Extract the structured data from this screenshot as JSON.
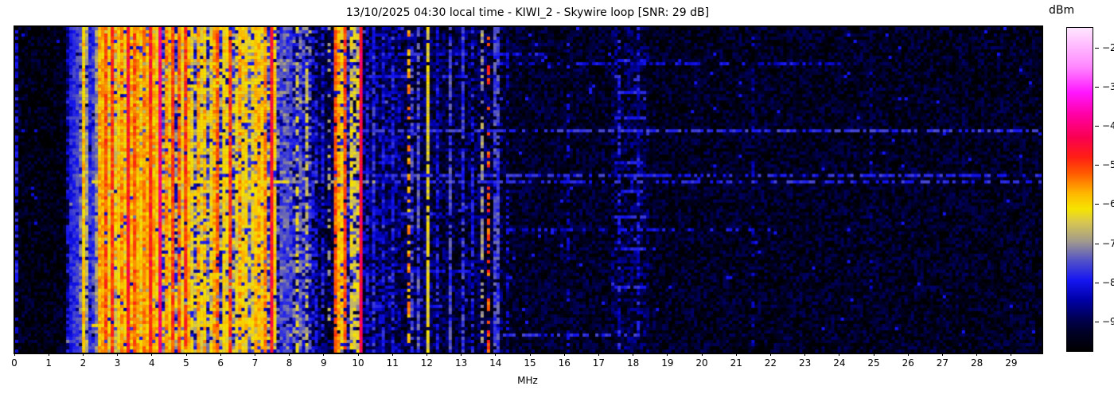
{
  "title": "13/10/2025 04:30 local time - KIWI_2 - Skywire loop [SNR: 29 dB]",
  "xaxis": {
    "label": "MHz",
    "ticks": [
      0,
      1,
      2,
      3,
      4,
      5,
      6,
      7,
      8,
      9,
      10,
      11,
      12,
      13,
      14,
      15,
      16,
      17,
      18,
      19,
      20,
      21,
      22,
      23,
      24,
      25,
      26,
      27,
      28,
      29
    ],
    "range": [
      0,
      29.86
    ]
  },
  "colorbar": {
    "label": "dBm",
    "ticks": [
      {
        "v": -20,
        "label": "−20"
      },
      {
        "v": -30,
        "label": "−30"
      },
      {
        "v": -40,
        "label": "−40"
      },
      {
        "v": -50,
        "label": "−50"
      },
      {
        "v": -60,
        "label": "−60"
      },
      {
        "v": -70,
        "label": "−70"
      },
      {
        "v": -80,
        "label": "−80"
      },
      {
        "v": -90,
        "label": "−90"
      }
    ],
    "value_range": [
      -97.5,
      -15
    ],
    "stops": [
      [
        0.0,
        "#000000"
      ],
      [
        0.06,
        "#000028"
      ],
      [
        0.1,
        "#000052"
      ],
      [
        0.16,
        "#0000aa"
      ],
      [
        0.22,
        "#1616f2"
      ],
      [
        0.28,
        "#5252c8"
      ],
      [
        0.34,
        "#a29a8c"
      ],
      [
        0.4,
        "#d9c84e"
      ],
      [
        0.44,
        "#f6e400"
      ],
      [
        0.49,
        "#ffb400"
      ],
      [
        0.55,
        "#ff5a00"
      ],
      [
        0.6,
        "#ff1e14"
      ],
      [
        0.66,
        "#fa0050"
      ],
      [
        0.73,
        "#ff00a2"
      ],
      [
        0.8,
        "#ff16ff"
      ],
      [
        0.88,
        "#ff88ff"
      ],
      [
        1.0,
        "#ffe6ff"
      ]
    ]
  },
  "chart_data": {
    "type": "heatmap",
    "title": "13/10/2025 04:30 local time - KIWI_2 - Skywire loop [SNR: 29 dB]",
    "xlabel": "MHz",
    "zlabel": "dBm",
    "x_range_mhz": [
      0,
      29.86
    ],
    "z_range_dbm": [
      -97.5,
      -15
    ],
    "grid": {
      "cols": 322,
      "rows": 102,
      "seed": 1337
    },
    "noise_bands": [
      [
        0.0,
        1.5,
        -95,
        3.5
      ],
      [
        1.5,
        2.28,
        -85,
        5
      ],
      [
        2.28,
        2.55,
        -79,
        7
      ],
      [
        2.55,
        4.65,
        -70,
        10
      ],
      [
        4.65,
        6.6,
        -74,
        9
      ],
      [
        6.6,
        7.6,
        -74,
        9
      ],
      [
        7.6,
        8.6,
        -80,
        7
      ],
      [
        8.6,
        9.25,
        -90,
        4.5
      ],
      [
        9.25,
        10.15,
        -82,
        7
      ],
      [
        10.15,
        11.2,
        -88,
        5
      ],
      [
        11.2,
        12.3,
        -90,
        4.5
      ],
      [
        12.3,
        14.2,
        -91,
        4.5
      ],
      [
        14.2,
        17.3,
        -93,
        3.5
      ],
      [
        17.3,
        18.5,
        -91,
        4.5
      ],
      [
        18.5,
        29.9,
        -93.5,
        3.5
      ]
    ],
    "signals": [
      [
        0.03,
        -80,
        0.04,
        0.5
      ],
      [
        1.6,
        -79,
        0.05,
        0.95
      ],
      [
        1.68,
        -78,
        0.05,
        0.95
      ],
      [
        1.76,
        -79,
        0.05,
        0.9
      ],
      [
        1.84,
        -77,
        0.05,
        0.9
      ],
      [
        1.93,
        -72,
        0.05,
        0.8
      ],
      [
        2.03,
        -59,
        0.05,
        1
      ],
      [
        2.1,
        -68,
        0.04,
        0.8
      ],
      [
        2.22,
        -78,
        0.04,
        0.9
      ],
      [
        2.32,
        -76,
        0.05,
        0.9
      ],
      [
        2.41,
        -70,
        0.04,
        0.8
      ],
      [
        2.5,
        -57,
        0.07,
        1
      ],
      [
        2.58,
        -62,
        0.05,
        0.9
      ],
      [
        2.66,
        -52,
        0.05,
        0.95
      ],
      [
        2.74,
        -62,
        0.04,
        0.8
      ],
      [
        2.82,
        -50,
        0.05,
        0.95
      ],
      [
        2.92,
        -65,
        0.04,
        0.8
      ],
      [
        3.0,
        -60,
        0.05,
        0.9
      ],
      [
        3.08,
        -55,
        0.05,
        0.9
      ],
      [
        3.16,
        -62,
        0.04,
        0.85
      ],
      [
        3.28,
        -46,
        0.06,
        1
      ],
      [
        3.38,
        -58,
        0.04,
        0.9
      ],
      [
        3.46,
        -52,
        0.05,
        0.95
      ],
      [
        3.56,
        -57,
        0.05,
        0.9
      ],
      [
        3.66,
        -60,
        0.04,
        0.85
      ],
      [
        3.76,
        -55,
        0.05,
        0.9
      ],
      [
        3.85,
        -58,
        0.04,
        0.9
      ],
      [
        3.94,
        -48,
        0.06,
        1
      ],
      [
        4.04,
        -57,
        0.05,
        0.9
      ],
      [
        4.13,
        -60,
        0.04,
        0.85
      ],
      [
        4.26,
        -41,
        0.09,
        1
      ],
      [
        4.4,
        -55,
        0.05,
        0.9
      ],
      [
        4.5,
        -60,
        0.05,
        0.85
      ],
      [
        4.63,
        -50,
        0.05,
        0.95
      ],
      [
        4.75,
        -52,
        0.04,
        0.9
      ],
      [
        4.85,
        -62,
        0.04,
        0.8
      ],
      [
        4.95,
        -50,
        0.05,
        0.95
      ],
      [
        5.06,
        -58,
        0.05,
        0.9
      ],
      [
        5.17,
        -62,
        0.04,
        0.8
      ],
      [
        5.3,
        -57,
        0.05,
        0.9
      ],
      [
        5.42,
        -63,
        0.04,
        0.8
      ],
      [
        5.55,
        -58,
        0.05,
        0.85
      ],
      [
        5.68,
        -62,
        0.04,
        0.8
      ],
      [
        5.8,
        -57,
        0.05,
        0.9
      ],
      [
        5.92,
        -52,
        0.05,
        0.9
      ],
      [
        6.05,
        -60,
        0.04,
        0.85
      ],
      [
        6.18,
        -62,
        0.04,
        0.8
      ],
      [
        6.3,
        -50,
        0.05,
        0.95
      ],
      [
        6.42,
        -63,
        0.04,
        0.8
      ],
      [
        6.55,
        -57,
        0.05,
        0.85
      ],
      [
        6.68,
        -60,
        0.04,
        0.8
      ],
      [
        6.8,
        -76,
        0.05,
        0.9
      ],
      [
        6.93,
        -62,
        0.04,
        0.8
      ],
      [
        7.05,
        -58,
        0.05,
        0.85
      ],
      [
        7.18,
        -60,
        0.04,
        0.85
      ],
      [
        7.3,
        -55,
        0.05,
        0.9
      ],
      [
        7.45,
        -47,
        0.05,
        1
      ],
      [
        7.57,
        -60,
        0.04,
        0.8
      ],
      [
        7.72,
        -77,
        0.05,
        0.9
      ],
      [
        7.88,
        -75,
        0.05,
        0.85
      ],
      [
        8.02,
        -77,
        0.04,
        0.85
      ],
      [
        8.18,
        -64,
        0.04,
        0.5
      ],
      [
        8.32,
        -74,
        0.04,
        0.7
      ],
      [
        8.47,
        -66,
        0.04,
        0.6
      ],
      [
        8.72,
        -80,
        0.04,
        0.6
      ],
      [
        8.95,
        -79,
        0.04,
        0.6
      ],
      [
        9.12,
        -68,
        0.04,
        0.3
      ],
      [
        9.28,
        -52,
        0.05,
        0.9
      ],
      [
        9.42,
        -57,
        0.05,
        0.9
      ],
      [
        9.5,
        -60,
        0.04,
        0.8
      ],
      [
        9.63,
        -51,
        0.05,
        0.9
      ],
      [
        9.8,
        -63,
        0.04,
        0.7
      ],
      [
        9.92,
        -64,
        0.04,
        0.7
      ],
      [
        10.05,
        -44,
        0.05,
        1
      ],
      [
        10.25,
        -80,
        0.04,
        0.6
      ],
      [
        10.45,
        -78,
        0.04,
        0.7
      ],
      [
        10.7,
        -80,
        0.04,
        0.6
      ],
      [
        11.0,
        -79,
        0.04,
        0.6
      ],
      [
        11.45,
        -56,
        0.04,
        0.45
      ],
      [
        11.58,
        -76,
        0.04,
        0.5
      ],
      [
        11.72,
        -75,
        0.04,
        0.8
      ],
      [
        12.05,
        -63,
        0.04,
        0.9
      ],
      [
        12.3,
        -80,
        0.04,
        0.6
      ],
      [
        12.65,
        -76,
        0.04,
        0.8
      ],
      [
        13.0,
        -77,
        0.04,
        0.8
      ],
      [
        13.3,
        -80,
        0.04,
        0.5
      ],
      [
        13.6,
        -69,
        0.04,
        0.6
      ],
      [
        13.74,
        -51,
        0.04,
        0.35
      ],
      [
        14.0,
        -76,
        0.04,
        0.8
      ],
      [
        14.35,
        -82,
        0.04,
        0.4
      ],
      [
        16.05,
        -82,
        0.04,
        0.3
      ],
      [
        17.55,
        -80,
        0.04,
        0.4
      ],
      [
        18.1,
        -80,
        0.04,
        0.4
      ],
      [
        21.5,
        -85,
        0.04,
        0.25
      ],
      [
        24.9,
        -85,
        0.04,
        0.2
      ]
    ],
    "bursts": [
      [
        0.11,
        2.5,
        8.0,
        -70,
        0.7
      ],
      [
        0.155,
        3.0,
        7.5,
        -72,
        0.6
      ],
      [
        0.475,
        2.2,
        8.0,
        -62,
        0.95
      ],
      [
        0.475,
        8.0,
        10.6,
        -70,
        0.6
      ],
      [
        0.48,
        10.6,
        30,
        -78,
        0.5
      ],
      [
        0.925,
        2.2,
        7.4,
        -62,
        0.95
      ],
      [
        0.08,
        10.2,
        15.5,
        -80,
        0.6
      ],
      [
        0.105,
        14,
        24,
        -81,
        0.5
      ],
      [
        0.145,
        10.3,
        13.2,
        -79,
        0.6
      ],
      [
        0.32,
        9.8,
        30,
        -77,
        0.7
      ],
      [
        0.46,
        9.8,
        30,
        -78,
        0.6
      ],
      [
        0.57,
        10,
        13,
        -80,
        0.5
      ],
      [
        0.62,
        14,
        22,
        -81,
        0.5
      ],
      [
        0.75,
        10.5,
        13.5,
        -80,
        0.5
      ],
      [
        0.86,
        9.5,
        12.5,
        -80,
        0.55
      ],
      [
        0.95,
        14.2,
        18.5,
        -78,
        0.6
      ],
      [
        0.1,
        17.4,
        18.4,
        -78,
        0.8
      ],
      [
        0.2,
        17.4,
        18.4,
        -78,
        0.8
      ],
      [
        0.28,
        17.4,
        18.4,
        -79,
        0.8
      ],
      [
        0.42,
        17.4,
        18.4,
        -78,
        0.8
      ],
      [
        0.5,
        17.4,
        18.4,
        -79,
        0.8
      ],
      [
        0.58,
        17.4,
        18.4,
        -78,
        0.8
      ],
      [
        0.68,
        17.4,
        18.4,
        -79,
        0.8
      ],
      [
        0.8,
        17.4,
        18.4,
        -78,
        0.8
      ]
    ]
  }
}
